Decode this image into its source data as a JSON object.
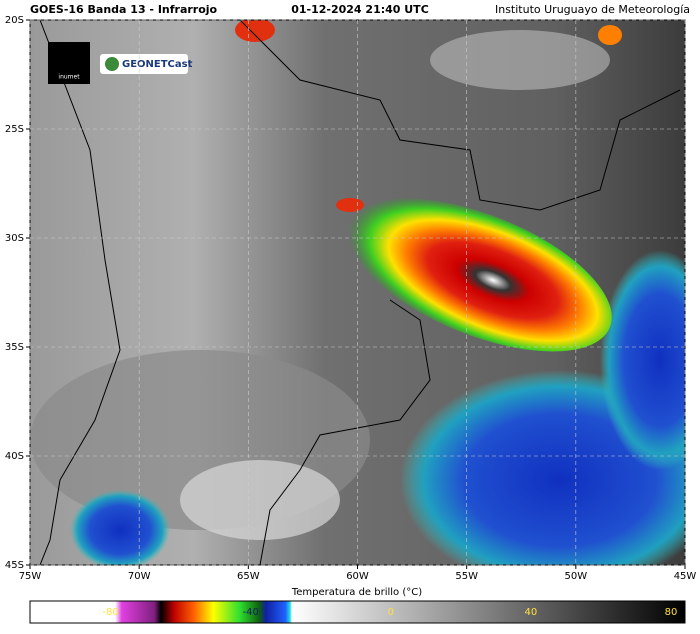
{
  "header": {
    "title": "GOES-16 Banda 13 - Infrarrojo",
    "datetime": "01-12-2024 21:40 UTC",
    "institute": "Instituto Uruguayo de Meteorología"
  },
  "logos": {
    "inumet": "inumet",
    "geonetcast": "GEONETCast"
  },
  "map": {
    "xlim": [
      -75,
      -45
    ],
    "ylim": [
      -45,
      -20
    ],
    "xticks": [
      {
        "value": -75,
        "label": "75W"
      },
      {
        "value": -70,
        "label": "70W"
      },
      {
        "value": -65,
        "label": "65W"
      },
      {
        "value": -60,
        "label": "60W"
      },
      {
        "value": -55,
        "label": "55W"
      },
      {
        "value": -50,
        "label": "50W"
      },
      {
        "value": -45,
        "label": "45W"
      }
    ],
    "yticks": [
      {
        "value": -20,
        "label": "20S"
      },
      {
        "value": -25,
        "label": "25S"
      },
      {
        "value": -30,
        "label": "30S"
      },
      {
        "value": -35,
        "label": "35S"
      },
      {
        "value": -40,
        "label": "40S"
      },
      {
        "value": -45,
        "label": "45S"
      }
    ]
  },
  "colorbar": {
    "label": "Temperatura de brillo (°C)",
    "lim": [
      -103,
      84
    ],
    "ticks": [
      -80,
      -40,
      0,
      40,
      80
    ]
  }
}
